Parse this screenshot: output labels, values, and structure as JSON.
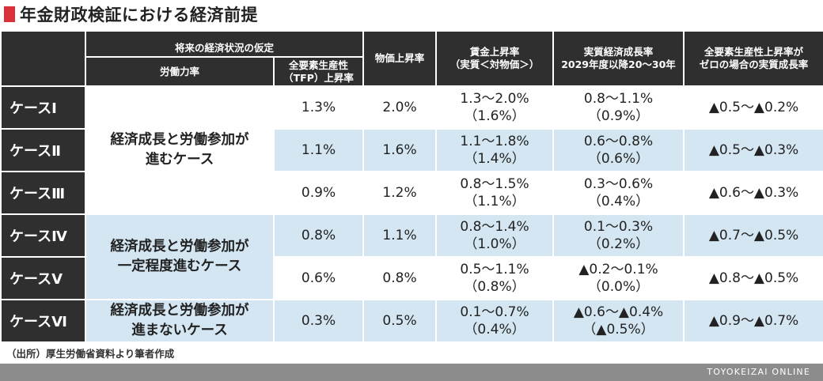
{
  "title": "年金財政検証における経済前提",
  "header": {
    "assumption_group": "将来の経済状況の仮定",
    "labor": "労働力率",
    "tfp_line1": "全要素生産性",
    "tfp_line2": "（TFP）上昇率",
    "price": "物価上昇率",
    "wage_line1": "賃金上昇率",
    "wage_line2": "（実質＜対物価＞）",
    "growth_line1": "実質経済成長率",
    "growth_line2": "2029年度以降20～30年",
    "zero_line1": "全要素生産性上昇率が",
    "zero_line2": "ゼロの場合の実質成長率"
  },
  "groups": [
    {
      "line1": "経済成長と労働参加が",
      "line2": "進むケース"
    },
    {
      "line1": "経済成長と労働参加が",
      "line2": "一定程度進むケース"
    },
    {
      "line1": "経済成長と労働参加が",
      "line2": "進まないケース"
    }
  ],
  "rows": [
    {
      "case": "ケースⅠ",
      "tfp": "1.3%",
      "price": "2.0%",
      "wage1": "1.3～2.0%",
      "wage2": "（1.6%）",
      "growth1": "0.8～1.1%",
      "growth2": "（0.9%）",
      "zero": "▲0.5～▲0.2%"
    },
    {
      "case": "ケースⅡ",
      "tfp": "1.1%",
      "price": "1.6%",
      "wage1": "1.1～1.8%",
      "wage2": "（1.4%）",
      "growth1": "0.6～0.8%",
      "growth2": "（0.6%）",
      "zero": "▲0.5～▲0.3%"
    },
    {
      "case": "ケースⅢ",
      "tfp": "0.9%",
      "price": "1.2%",
      "wage1": "0.8～1.5%",
      "wage2": "（1.1%）",
      "growth1": "0.3～0.6%",
      "growth2": "（0.4%）",
      "zero": "▲0.6～▲0.3%"
    },
    {
      "case": "ケースⅣ",
      "tfp": "0.8%",
      "price": "1.1%",
      "wage1": "0.8～1.4%",
      "wage2": "（1.0%）",
      "growth1": "0.1～0.3%",
      "growth2": "（0.2%）",
      "zero": "▲0.7～▲0.5%"
    },
    {
      "case": "ケースⅤ",
      "tfp": "0.6%",
      "price": "0.8%",
      "wage1": "0.5～1.1%",
      "wage2": "（0.8%）",
      "growth1": "▲0.2～0.1%",
      "growth2": "（0.0%）",
      "zero": "▲0.8～▲0.5%"
    },
    {
      "case": "ケースⅥ",
      "tfp": "0.3%",
      "price": "0.5%",
      "wage1": "0.1～0.7%",
      "wage2": "（0.4%）",
      "growth1": "▲0.6～▲0.4%",
      "growth2": "（▲0.5%）",
      "zero": "▲0.9～▲0.7%"
    }
  ],
  "source": "（出所）厚生労働省資料より筆者作成",
  "brand": "TOYOKEIZAI ONLINE",
  "colors": {
    "header_bg": "#2f2f2f",
    "row_alt_bg": "#d3e6f2",
    "title_mark": "#d9303a",
    "brand_bar": "#8c8c8c"
  }
}
